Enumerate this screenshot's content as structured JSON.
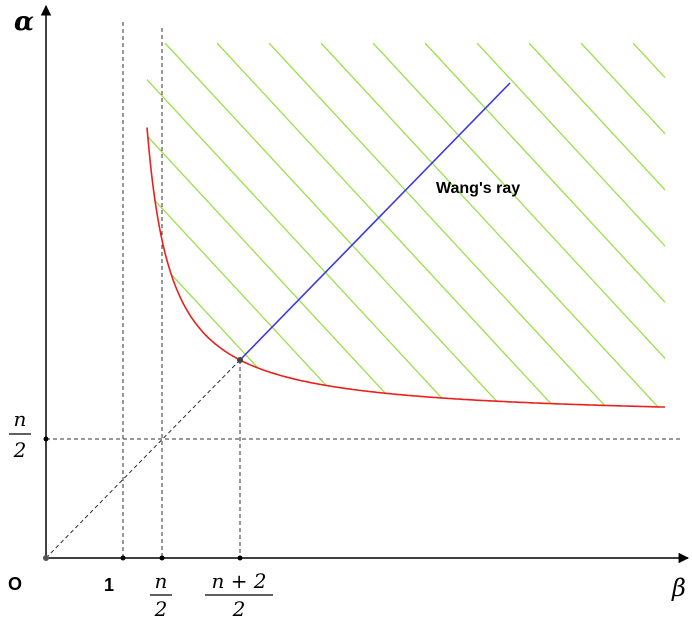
{
  "axes": {
    "y_label": "α",
    "x_label": "β",
    "origin_label": "O"
  },
  "ticks": {
    "x_one": "1",
    "x_n_over_2": {
      "numerator": "n",
      "denominator": "2"
    },
    "x_n_plus_2_over_2": {
      "numerator": "n + 2",
      "denominator": "2"
    },
    "y_n_over_2": {
      "numerator": "n",
      "denominator": "2"
    }
  },
  "annotations": {
    "ray_label": "Wang's ray"
  },
  "colors": {
    "curve": "#e8211e",
    "ray": "#3a3ae0",
    "hatch": "#9be04a",
    "guide": "#333333",
    "axis": "#000000"
  }
}
